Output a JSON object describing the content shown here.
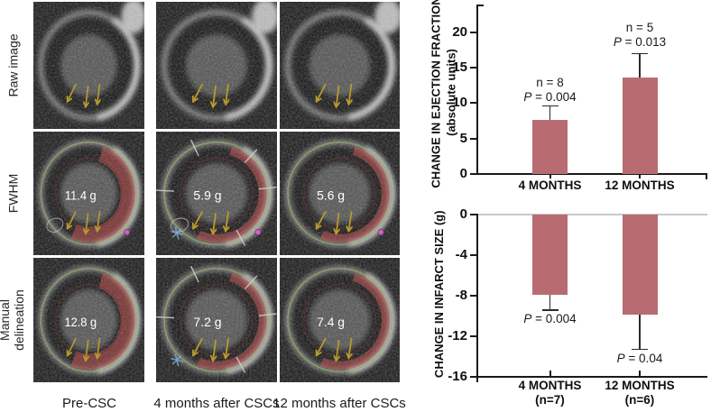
{
  "mri_panel": {
    "row_labels": [
      "Raw image",
      "FWHM",
      "Manual delineation"
    ],
    "col_labels": [
      "Pre-CSC",
      "4 months after CSCs",
      "12 months after CSCs"
    ],
    "arrow_color": "#b89a2e",
    "infarct_color": "#c25a5a",
    "cells": [
      {
        "row": 0,
        "col": 0,
        "mass": "",
        "red": "none",
        "outlines": false,
        "ticks": false,
        "asterisk": false,
        "magenta": false,
        "ellipse": false,
        "blob": true
      },
      {
        "row": 0,
        "col": 1,
        "mass": "",
        "red": "none",
        "outlines": false,
        "ticks": false,
        "asterisk": false,
        "magenta": false,
        "ellipse": false,
        "blob": true
      },
      {
        "row": 0,
        "col": 2,
        "mass": "",
        "red": "none",
        "outlines": false,
        "ticks": false,
        "asterisk": false,
        "magenta": false,
        "ellipse": false,
        "blob": true
      },
      {
        "row": 1,
        "col": 0,
        "mass": "11.4 g",
        "red": "thick",
        "outlines": true,
        "ticks": false,
        "asterisk": false,
        "magenta": true,
        "ellipse": true,
        "blob": false
      },
      {
        "row": 1,
        "col": 1,
        "mass": "5.9 g",
        "red": "thin",
        "outlines": true,
        "ticks": true,
        "asterisk": true,
        "magenta": true,
        "ellipse": true,
        "blob": false
      },
      {
        "row": 1,
        "col": 2,
        "mass": "5.6 g",
        "red": "thin",
        "outlines": true,
        "ticks": false,
        "asterisk": false,
        "magenta": true,
        "ellipse": false,
        "blob": false
      },
      {
        "row": 2,
        "col": 0,
        "mass": "12.8 g",
        "red": "thick",
        "outlines": true,
        "ticks": false,
        "asterisk": false,
        "magenta": false,
        "ellipse": false,
        "blob": false
      },
      {
        "row": 2,
        "col": 1,
        "mass": "7.2 g",
        "red": "thin",
        "outlines": true,
        "ticks": true,
        "asterisk": true,
        "magenta": false,
        "ellipse": false,
        "blob": false
      },
      {
        "row": 2,
        "col": 2,
        "mass": "7.4 g",
        "red": "thin",
        "outlines": true,
        "ticks": false,
        "asterisk": false,
        "magenta": false,
        "ellipse": false,
        "blob": false
      }
    ]
  },
  "chart_data": [
    {
      "type": "bar",
      "ylabel": "CHANGE IN EJECTION FRACTION",
      "ylabel2": "(absolute units)",
      "categories": [
        "4 MONTHS",
        "12 MONTHS"
      ],
      "values": [
        7.6,
        13.6
      ],
      "errors_up": [
        2.0,
        3.4
      ],
      "annotations": [
        [
          "n = 8",
          "P = 0.004"
        ],
        [
          "n = 5",
          "P = 0.013"
        ]
      ],
      "yticks": [
        0,
        5,
        10,
        15,
        20
      ],
      "ylim": [
        0,
        24
      ],
      "bar_color": "#b96b72"
    },
    {
      "type": "bar",
      "ylabel": "CHANGE IN INFARCT SIZE (g)",
      "categories": [
        "4 MONTHS",
        "12 MONTHS"
      ],
      "sublabels": [
        "(n=7)",
        "(n=6)"
      ],
      "values": [
        -7.9,
        -9.9
      ],
      "errors_down": [
        1.5,
        3.4
      ],
      "annotations": [
        [
          "P = 0.004"
        ],
        [
          "P = 0.04"
        ]
      ],
      "yticks": [
        0,
        -4,
        -8,
        -12,
        -16
      ],
      "ylim": [
        -16,
        0
      ],
      "bar_color": "#b96b72",
      "zero_line_color": "#c9c9c9"
    }
  ]
}
